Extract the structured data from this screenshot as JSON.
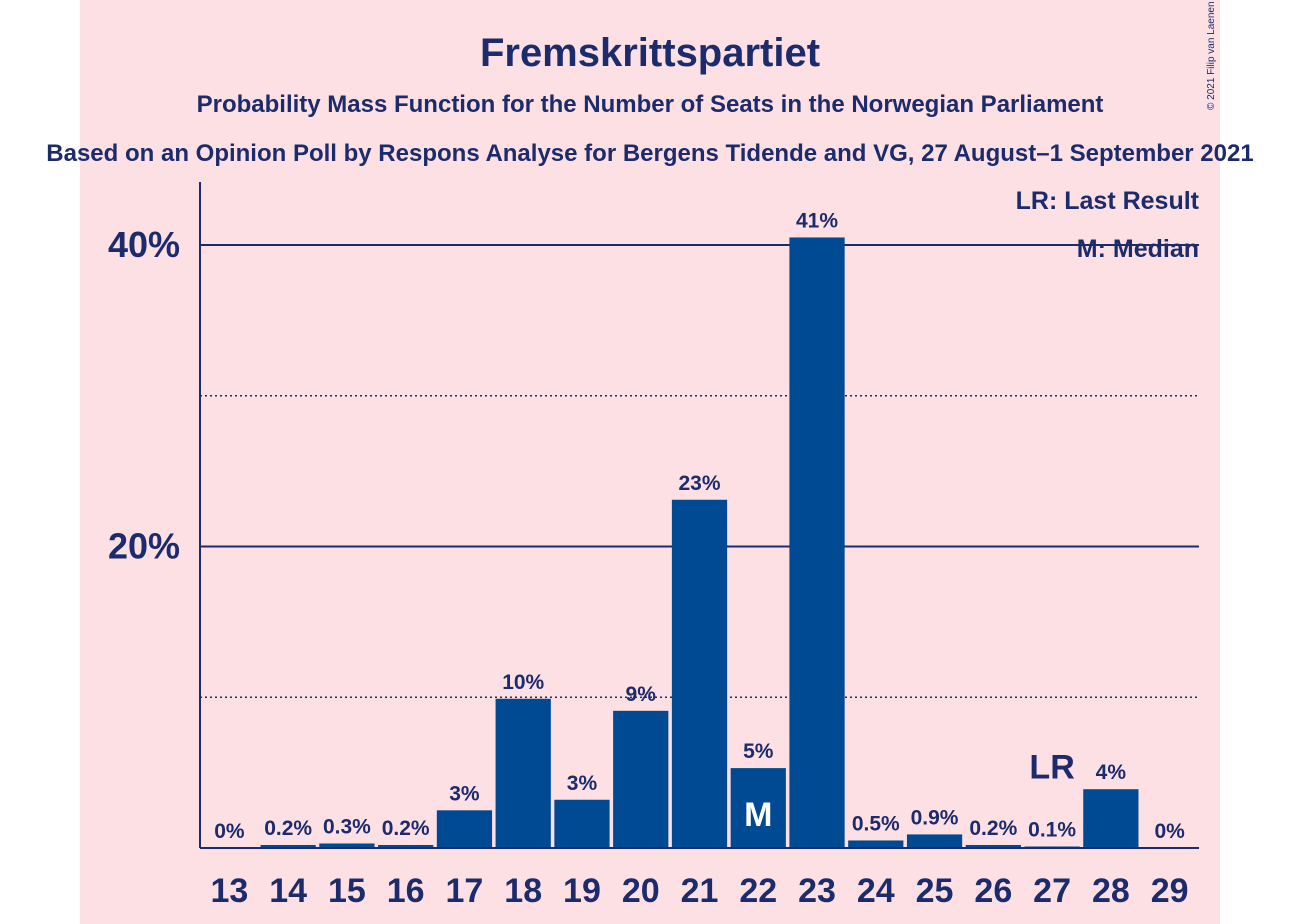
{
  "copyright": "© 2021 Filip van Laenen",
  "colors": {
    "bar": "#004a93",
    "text": "#1c2b6b",
    "background": "#fde0e3"
  },
  "chart_data": {
    "type": "bar",
    "title": "Fremskrittspartiet",
    "subtitle": "Probability Mass Function for the Number of Seats in the Norwegian Parliament",
    "subtitle2": "Based on an Opinion Poll by Respons Analyse for Bergens Tidende and VG, 27 August–1 September 2021",
    "categories": [
      "13",
      "14",
      "15",
      "16",
      "17",
      "18",
      "19",
      "20",
      "21",
      "22",
      "23",
      "24",
      "25",
      "26",
      "27",
      "28",
      "29"
    ],
    "values": [
      0,
      0.2,
      0.3,
      0.2,
      2.5,
      9.9,
      3.2,
      9.1,
      23.1,
      5.3,
      40.5,
      0.5,
      0.9,
      0.2,
      0.1,
      3.9,
      0
    ],
    "labels": [
      "0%",
      "0.2%",
      "0.3%",
      "0.2%",
      "3%",
      "10%",
      "3%",
      "9%",
      "23%",
      "5%",
      "41%",
      "0.5%",
      "0.9%",
      "0.2%",
      "0.1%",
      "4%",
      "0%"
    ],
    "ylim": [
      0,
      44
    ],
    "yticks": [
      20,
      40
    ],
    "ytick_labels": [
      "20%",
      "40%"
    ],
    "minor_gridlines": [
      10,
      30
    ],
    "median_seat": "22",
    "median_marker": "M",
    "last_result_seat": "27",
    "last_result_marker": "LR",
    "legend": [
      "LR: Last Result",
      "M: Median"
    ],
    "legend_position": "top-right"
  }
}
